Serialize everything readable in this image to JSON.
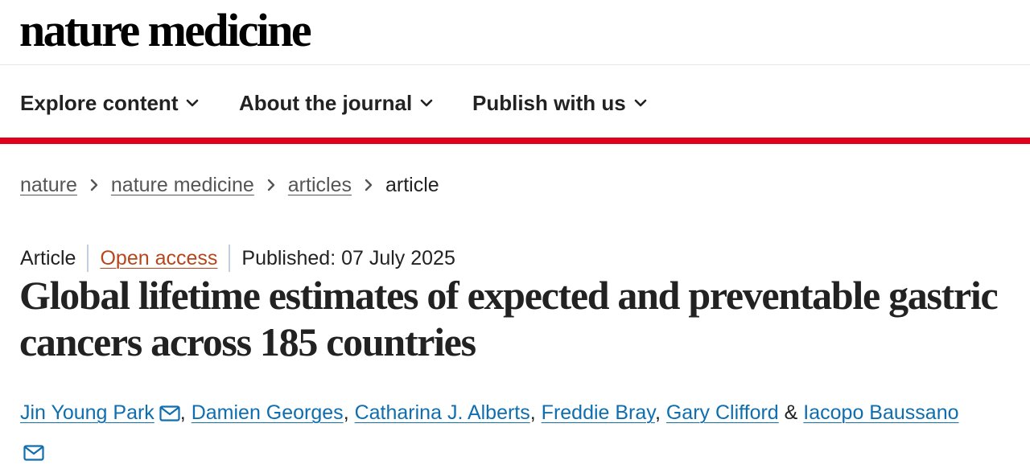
{
  "header": {
    "logo_text": "nature medicine"
  },
  "nav": {
    "items": [
      {
        "label": "Explore content"
      },
      {
        "label": "About the journal"
      },
      {
        "label": "Publish with us"
      }
    ]
  },
  "breadcrumb": {
    "items": [
      "nature",
      "nature medicine",
      "articles"
    ],
    "current": "article"
  },
  "article": {
    "type": "Article",
    "access": "Open access",
    "published": "Published: 07 July 2025",
    "title": "Global lifetime estimates of expected and preventable gastric cancers across 185 countries",
    "authors": [
      {
        "name": "Jin Young Park",
        "corresponding": true
      },
      {
        "name": "Damien Georges",
        "corresponding": false
      },
      {
        "name": "Catharina J. Alberts",
        "corresponding": false
      },
      {
        "name": "Freddie Bray",
        "corresponding": false
      },
      {
        "name": "Gary Clifford",
        "corresponding": false
      },
      {
        "name": "Iacopo Baussano",
        "corresponding": true
      }
    ],
    "author_separator": ",",
    "author_final_separator": "&"
  },
  "colors": {
    "accent_rule": "#e0001b",
    "link": "#0f6eb0",
    "open_access": "#b6461b"
  },
  "icons": {
    "nav_chevron": "chevron-down-icon",
    "breadcrumb_separator": "chevron-right-icon",
    "author_email": "mail-icon"
  }
}
